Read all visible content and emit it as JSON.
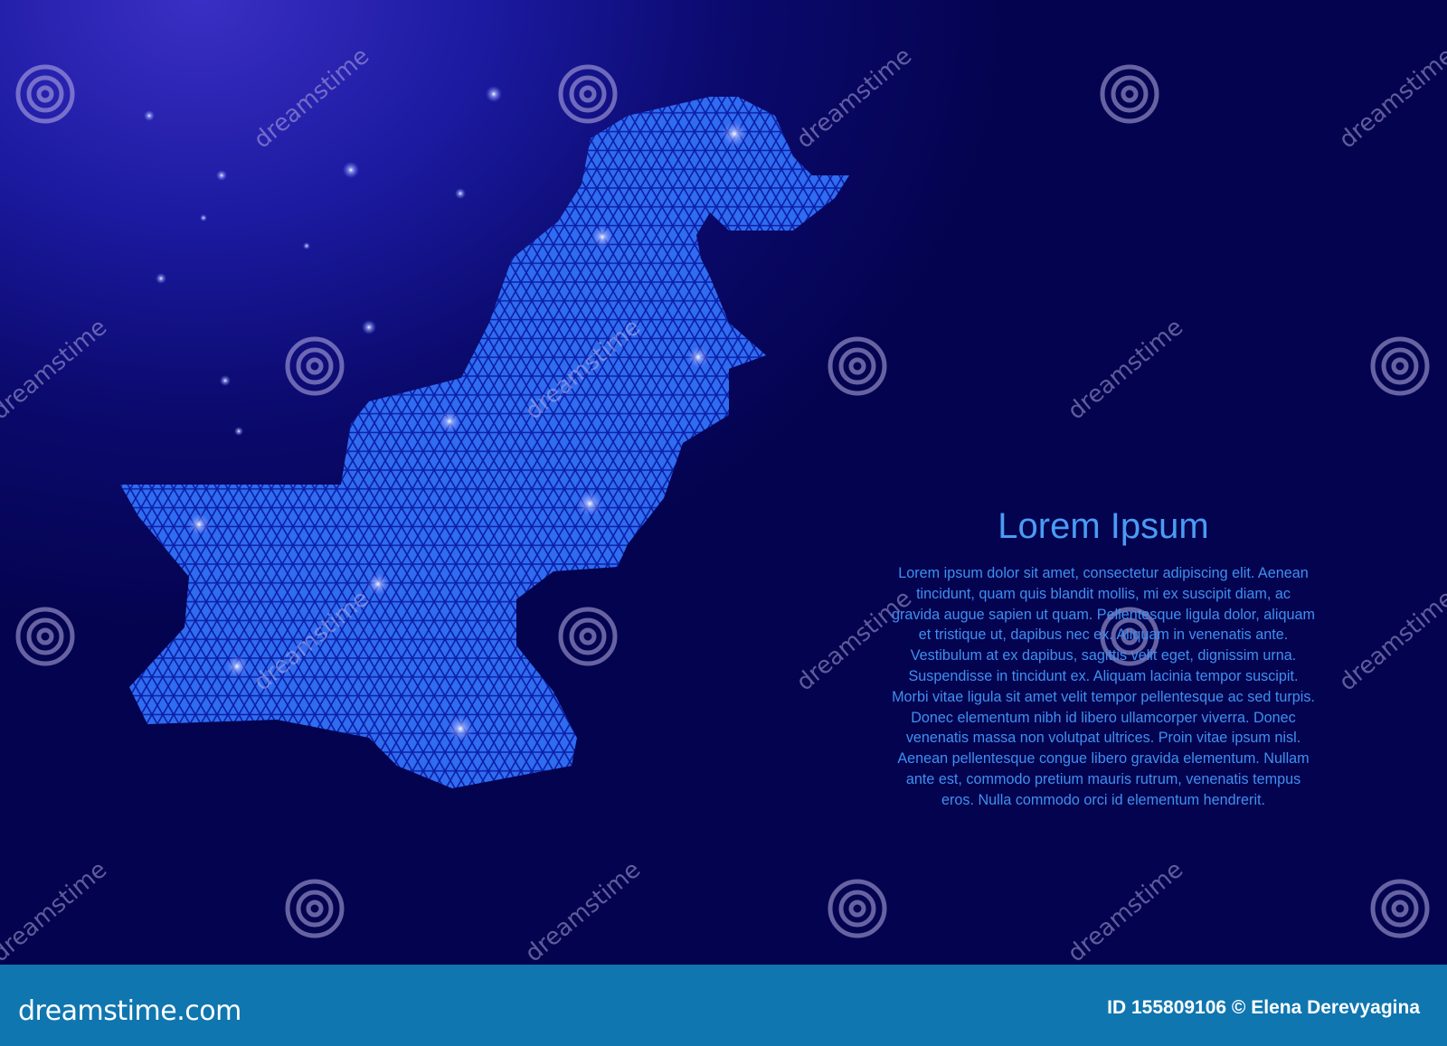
{
  "map": {
    "country": "Pakistan",
    "fill_color": "#2f6cf0",
    "line_color": "#0c1fa8",
    "glow_color": "#a8b8ff"
  },
  "text_block": {
    "title": "Lorem Ipsum",
    "body": "Lorem ipsum dolor sit amet, consectetur adipiscing elit. Aenean tincidunt, quam quis blandit mollis, mi ex suscipit diam, ac gravida augue sapien ut quam. Pellentesque ligula dolor, aliquam et tristique ut, dapibus nec ex. Aliquam in venenatis ante. Vestibulum at ex dapibus, sagittis velit eget, dignissim urna. Suspendisse in tincidunt ex. Aliquam lacinia tempor suscipit. Morbi vitae ligula sit amet velit tempor pellentesque ac sed turpis. Donec elementum nibh id libero ullamcorper viverra. Donec venenatis massa non volutpat ultrices. Proin vitae ipsum nisl. Aenean pellentesque congue libero gravida elementum. Nullam ante est, commodo pretium mauris rutrum, venenatis tempus eros. Nulla commodo orci id elementum hendrerit.",
    "title_color": "#4a9cf5"
  },
  "watermark": {
    "text": "dreamstime",
    "icon": "spiral-icon"
  },
  "footer": {
    "logo": "dreamstime.com",
    "credit": "ID 155809106 © Elena Derevyagina",
    "background": "#0f76b0"
  }
}
